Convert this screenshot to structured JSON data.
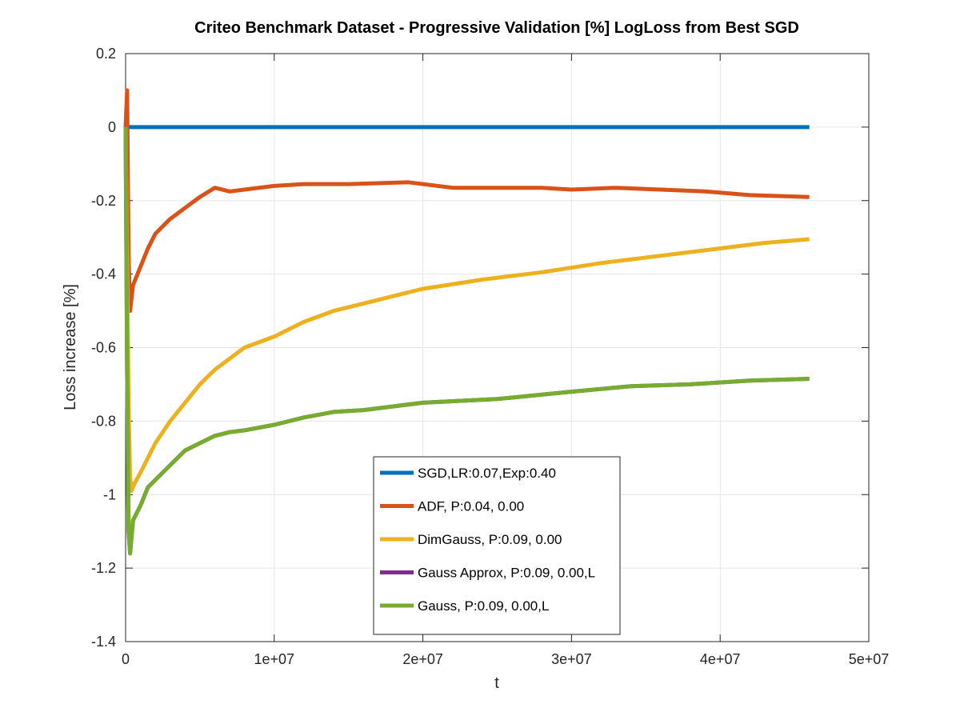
{
  "chart_data": {
    "type": "line",
    "title": "Criteo Benchmark Dataset - Progressive Validation [%] LogLoss from Best SGD",
    "xlabel": "t",
    "ylabel": "Loss increase [%]",
    "xlim": [
      0,
      50000000
    ],
    "ylim": [
      -1.4,
      0.2
    ],
    "xticks": [
      0,
      10000000,
      20000000,
      30000000,
      40000000,
      50000000
    ],
    "xtick_labels": [
      "0",
      "1e+07",
      "2e+07",
      "3e+07",
      "4e+07",
      "5e+07"
    ],
    "yticks": [
      0.2,
      0,
      -0.2,
      -0.4,
      -0.6,
      -0.8,
      -1,
      -1.2,
      -1.4
    ],
    "ytick_labels": [
      "0.2",
      "0",
      "-0.2",
      "-0.4",
      "-0.6",
      "-0.8",
      "-1",
      "-1.2",
      "-1.4"
    ],
    "grid": true,
    "legend_position": "bottom-center",
    "series": [
      {
        "name": "SGD,LR:0.07,Exp:0.40",
        "color": "#0072BD",
        "x": [
          0,
          46000000
        ],
        "values": [
          0,
          0
        ]
      },
      {
        "name": "ADF, P:0.04, 0.00",
        "color": "#D95319",
        "x": [
          0,
          100000,
          200000,
          300000,
          500000,
          1000000,
          1500000,
          2000000,
          3000000,
          4000000,
          5000000,
          6000000,
          7000000,
          8000000,
          10000000,
          12000000,
          15000000,
          19000000,
          22000000,
          25000000,
          28000000,
          30000000,
          33000000,
          36000000,
          39000000,
          42000000,
          46000000
        ],
        "values": [
          0.0,
          0.1,
          -0.35,
          -0.5,
          -0.43,
          -0.38,
          -0.33,
          -0.29,
          -0.25,
          -0.22,
          -0.19,
          -0.165,
          -0.175,
          -0.17,
          -0.16,
          -0.155,
          -0.155,
          -0.15,
          -0.165,
          -0.165,
          -0.165,
          -0.17,
          -0.165,
          -0.17,
          -0.175,
          -0.185,
          -0.19
        ]
      },
      {
        "name": "DimGauss, P:0.09, 0.00",
        "color": "#EDB120",
        "x": [
          0,
          100000,
          200000,
          300000,
          400000,
          600000,
          1000000,
          1500000,
          2000000,
          3000000,
          4000000,
          5000000,
          6000000,
          7000000,
          8000000,
          10000000,
          12000000,
          14000000,
          16000000,
          18000000,
          20000000,
          24000000,
          28000000,
          32000000,
          36000000,
          40000000,
          43000000,
          46000000
        ],
        "values": [
          0.0,
          -0.35,
          -0.75,
          -0.95,
          -0.99,
          -0.97,
          -0.94,
          -0.9,
          -0.86,
          -0.8,
          -0.75,
          -0.7,
          -0.66,
          -0.63,
          -0.6,
          -0.57,
          -0.53,
          -0.5,
          -0.48,
          -0.46,
          -0.44,
          -0.415,
          -0.395,
          -0.37,
          -0.35,
          -0.33,
          -0.315,
          -0.305
        ]
      },
      {
        "name": "Gauss Approx, P:0.09, 0.00,L",
        "color": "#7E2F8E",
        "x": [
          0,
          100000,
          200000,
          300000,
          500000,
          1000000,
          1500000,
          2000000,
          3000000,
          4000000,
          5000000,
          6000000,
          7000000,
          8000000,
          10000000,
          12000000,
          14000000,
          16000000,
          18000000,
          20000000,
          25000000,
          30000000,
          34000000,
          38000000,
          42000000,
          46000000
        ],
        "values": [
          0.0,
          -0.67,
          -1.1,
          -1.16,
          -1.07,
          -1.03,
          -0.98,
          -0.96,
          -0.92,
          -0.88,
          -0.86,
          -0.84,
          -0.83,
          -0.825,
          -0.81,
          -0.79,
          -0.775,
          -0.77,
          -0.76,
          -0.75,
          -0.74,
          -0.72,
          -0.705,
          -0.7,
          -0.69,
          -0.685
        ]
      },
      {
        "name": "Gauss, P:0.09, 0.00,L",
        "color": "#77AC30",
        "x": [
          0,
          100000,
          200000,
          300000,
          500000,
          1000000,
          1500000,
          2000000,
          3000000,
          4000000,
          5000000,
          6000000,
          7000000,
          8000000,
          10000000,
          12000000,
          14000000,
          16000000,
          18000000,
          20000000,
          25000000,
          30000000,
          34000000,
          38000000,
          42000000,
          46000000
        ],
        "values": [
          0.0,
          -0.67,
          -1.1,
          -1.16,
          -1.07,
          -1.03,
          -0.98,
          -0.96,
          -0.92,
          -0.88,
          -0.86,
          -0.84,
          -0.83,
          -0.825,
          -0.81,
          -0.79,
          -0.775,
          -0.77,
          -0.76,
          -0.75,
          -0.74,
          -0.72,
          -0.705,
          -0.7,
          -0.69,
          -0.685
        ]
      }
    ]
  }
}
